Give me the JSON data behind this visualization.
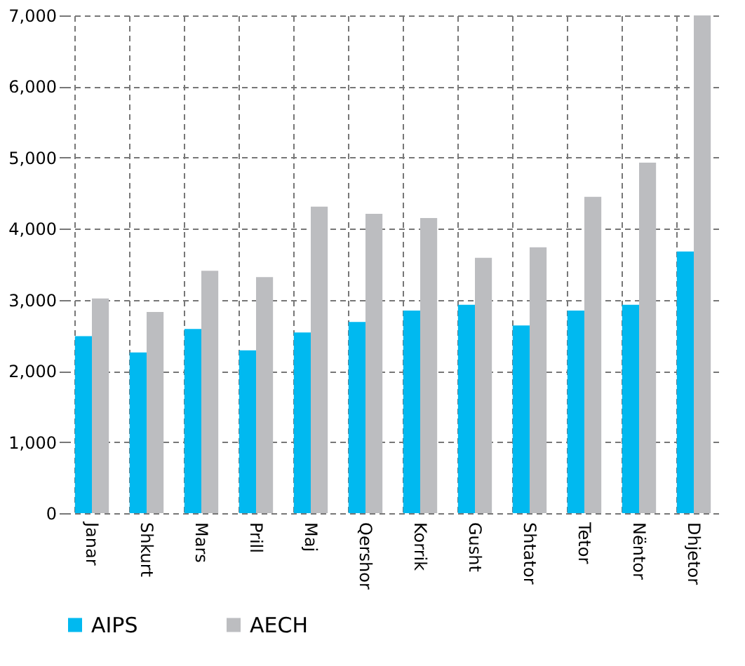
{
  "chart_data": {
    "type": "bar",
    "categories": [
      "Janar",
      "Shkurt",
      "Mars",
      "Prill",
      "Maj",
      "Qershor",
      "Korrik",
      "Gusht",
      "Shtator",
      "Tetor",
      "Nëntor",
      "Dhjetor"
    ],
    "series": [
      {
        "name": "AIPS",
        "color": "#00b9f0",
        "values": [
          2490,
          2260,
          2590,
          2290,
          2540,
          2690,
          2850,
          2930,
          2640,
          2850,
          2930,
          3680
        ]
      },
      {
        "name": "AECH",
        "color": "#bcbdc0",
        "values": [
          3020,
          2830,
          3410,
          3320,
          4310,
          4210,
          4150,
          3590,
          3740,
          4450,
          4930,
          7000
        ]
      }
    ],
    "ylim": [
      0,
      7000
    ],
    "yticks": [
      0,
      {
        "value": 1000,
        "label": "1,000"
      },
      {
        "value": 2000,
        "label": "2,000"
      },
      {
        "value": 3000,
        "label": "3,000"
      },
      {
        "value": 4000,
        "label": "4,000"
      },
      {
        "value": 5000,
        "label": "5,000"
      },
      {
        "value": 6000,
        "label": "6,000"
      },
      {
        "value": 7000,
        "label": "7,000"
      }
    ],
    "grid": true,
    "legend": "bottom"
  }
}
